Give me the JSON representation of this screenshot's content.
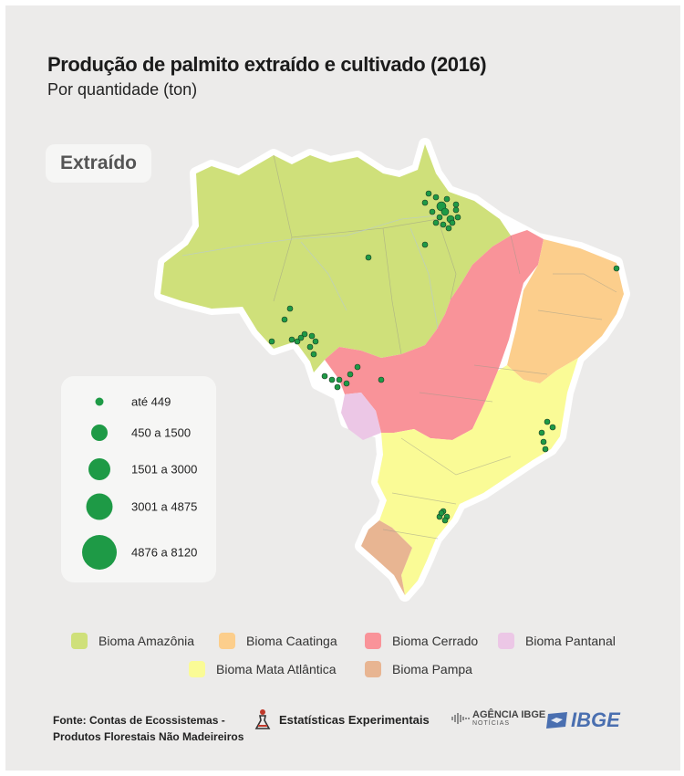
{
  "header": {
    "title": "Produção de palmito extraído e cultivado (2016)",
    "subtitle": "Por quantidade (ton)"
  },
  "badge": {
    "label": "Extraído"
  },
  "size_legend": {
    "items": [
      {
        "label": "até 449"
      },
      {
        "label": "450 a 1500"
      },
      {
        "label": "1501 a 3000"
      },
      {
        "label": "3001 a 4875"
      },
      {
        "label": "4876 a 8120"
      }
    ]
  },
  "biome_legend": {
    "items": [
      {
        "label": "Bioma Amazônia",
        "color": "#cfe07a"
      },
      {
        "label": "Bioma Caatinga",
        "color": "#fcce8c"
      },
      {
        "label": "Bioma Cerrado",
        "color": "#f99399"
      },
      {
        "label": "Bioma Pantanal",
        "color": "#ecc7e6"
      },
      {
        "label": "Bioma Mata Atlântica",
        "color": "#fafb96"
      },
      {
        "label": "Bioma Pampa",
        "color": "#e8b592"
      }
    ]
  },
  "footer": {
    "source_line1": "Fonte: Contas de Ecossistemas -",
    "source_line2": "Produtos Florestais Não Madeireiros",
    "experimental": "Estatísticas Experimentais",
    "agencia_main": "AGÊNCIA IBGE",
    "agencia_sub": "NOTÍCIAS",
    "ibge": "IBGE"
  },
  "colors": {
    "point": "#1e9a46",
    "point_stroke": "#1b3a22",
    "background": "#ecebea"
  }
}
